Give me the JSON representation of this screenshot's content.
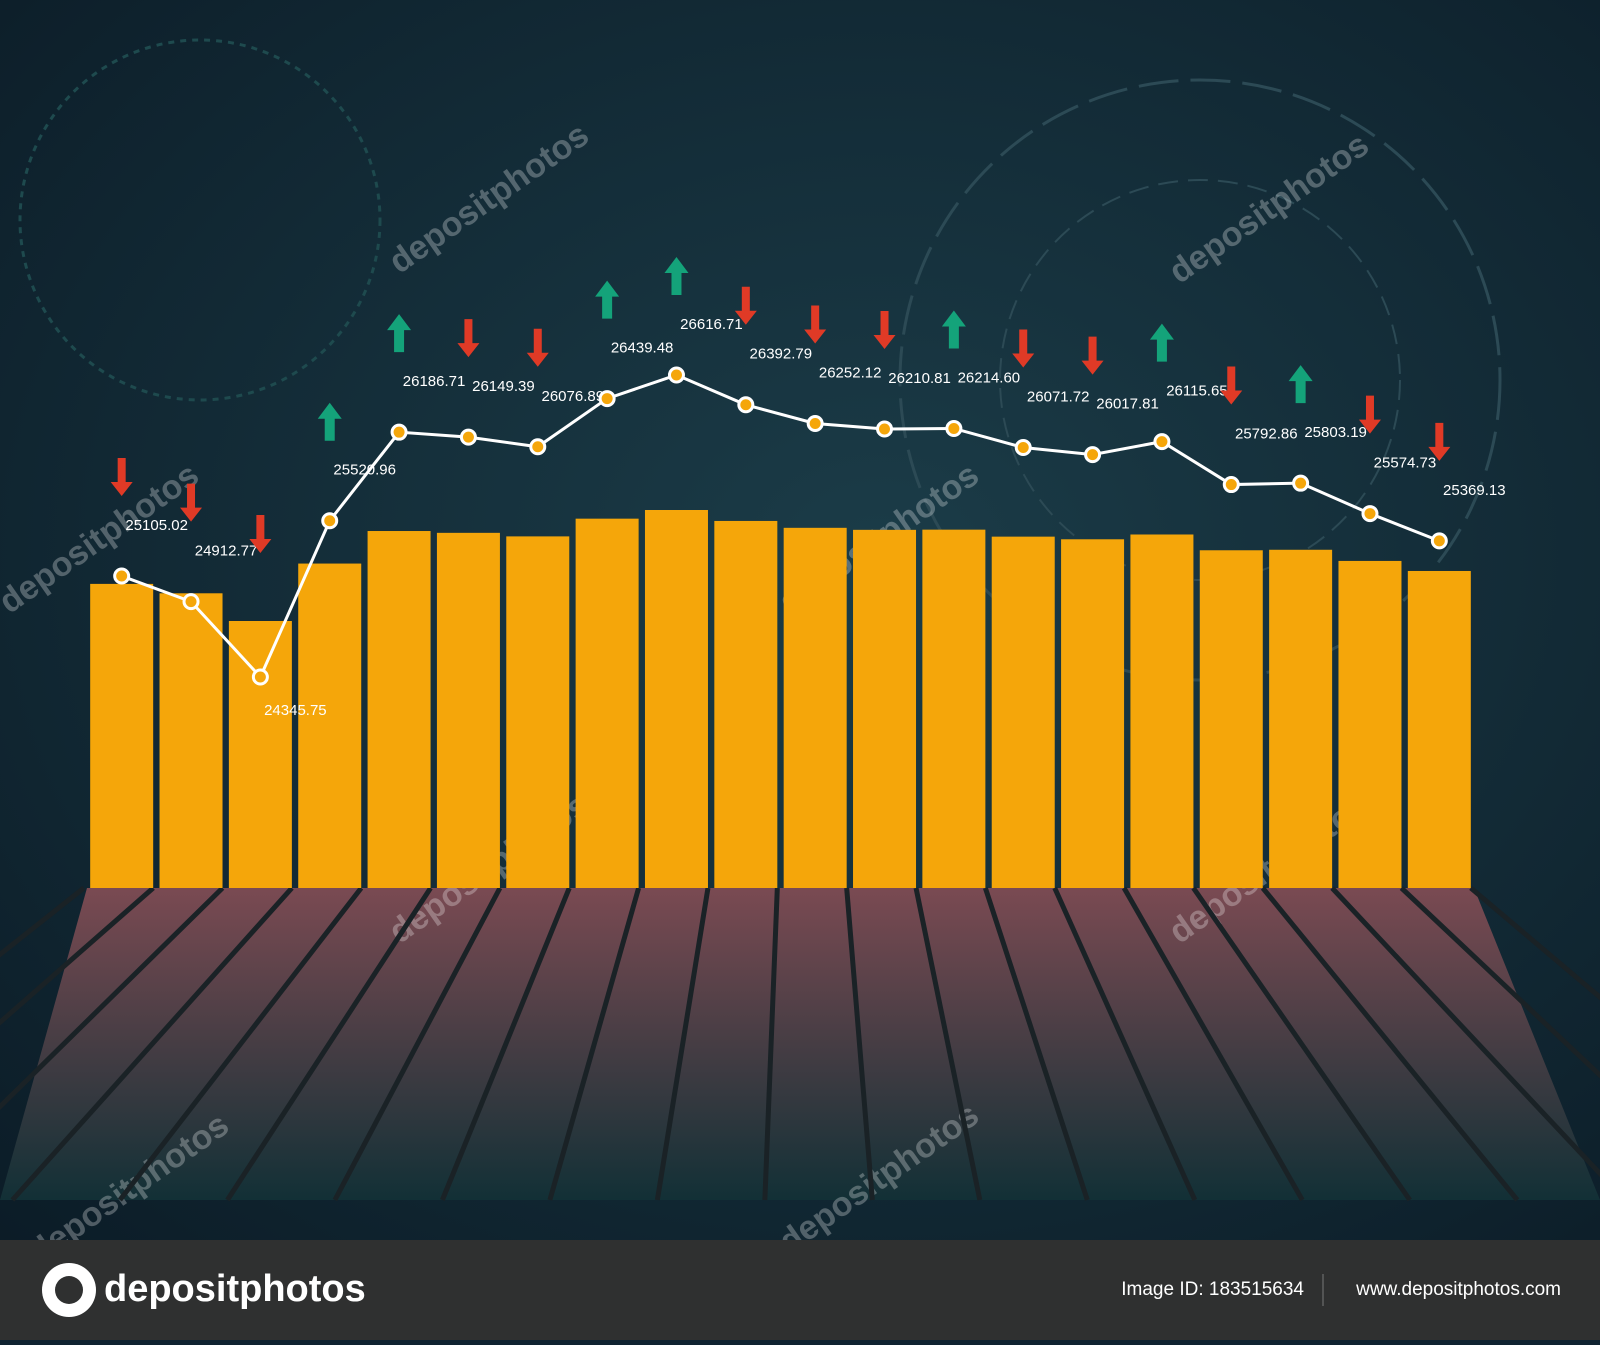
{
  "chart_data": {
    "type": "bar",
    "values": [
      25105.02,
      24912.77,
      24345.75,
      25520.96,
      26186.71,
      26149.39,
      26076.89,
      26439.48,
      26616.71,
      26392.79,
      26252.12,
      26210.81,
      26214.6,
      26071.72,
      26017.81,
      26115.65,
      25792.86,
      25803.19,
      25574.73,
      25369.13
    ],
    "value_labels": [
      "25105.02",
      "24912.77",
      "24345.75",
      "25520.96",
      "26186.71",
      "26149.39",
      "26076.89",
      "26439.48",
      "26616.71",
      "26392.79",
      "26252.12",
      "26210.81",
      "26214.60",
      "26071.72",
      "26017.81",
      "26115.65",
      "25792.86",
      "25803.19",
      "25574.73",
      "25369.13"
    ],
    "directions": [
      "down",
      "down",
      "down",
      "up",
      "up",
      "down",
      "down",
      "up",
      "up",
      "down",
      "down",
      "down",
      "up",
      "down",
      "down",
      "up",
      "down",
      "up",
      "down",
      "down"
    ],
    "color": "#f5a60a",
    "line_color": "#ffffff",
    "up_color": "#14a37a",
    "down_color": "#e03a26"
  },
  "watermark": "depositphotos",
  "footer": {
    "brand": "depositphotos",
    "image_id": "Image ID: 183515634",
    "url": "www.depositphotos.com"
  }
}
